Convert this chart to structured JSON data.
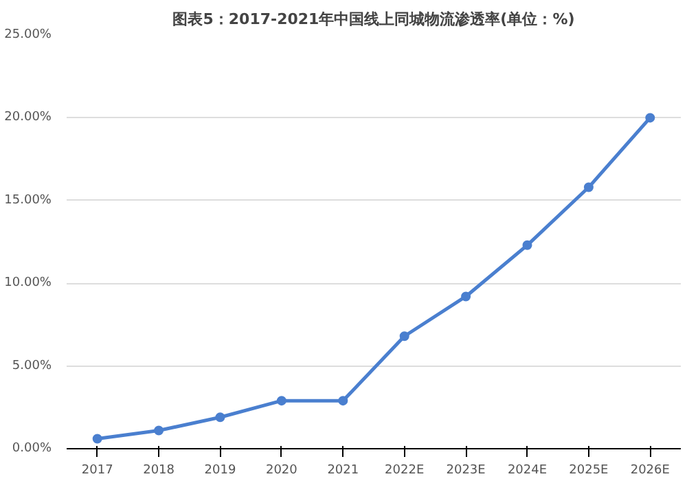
{
  "chart_data": {
    "type": "line",
    "title": "图表5：2017-2021年中国线上同城物流渗透率(单位：%)",
    "categories": [
      "2017",
      "2018",
      "2019",
      "2020",
      "2021",
      "2022E",
      "2023E",
      "2024E",
      "2025E",
      "2026E"
    ],
    "series": [
      {
        "color": "#4a7fcf",
        "values": [
          0.6,
          1.1,
          1.9,
          2.9,
          2.9,
          6.8,
          9.2,
          12.3,
          15.8,
          20.0
        ]
      }
    ],
    "ylim": [
      0,
      25
    ],
    "yticks": [
      {
        "value": 0,
        "label": "0.00%"
      },
      {
        "value": 5,
        "label": "5.00%"
      },
      {
        "value": 10,
        "label": "10.00%"
      },
      {
        "value": 15,
        "label": "15.00%"
      },
      {
        "value": 20,
        "label": "20.00%"
      },
      {
        "value": 25,
        "label": "25.00%"
      }
    ],
    "grid": "y",
    "marker": "circle",
    "line_style": "solid"
  }
}
